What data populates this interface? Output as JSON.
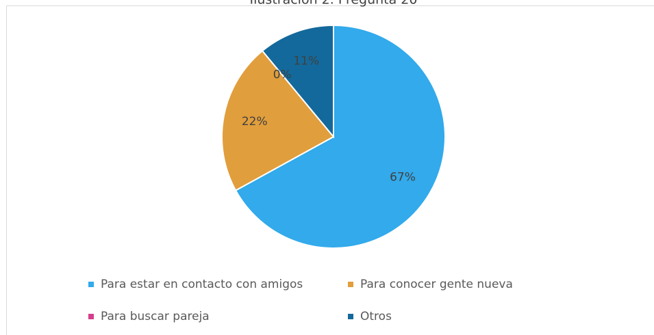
{
  "chart_data": {
    "type": "pie",
    "title": "Ilustración 2. Pregunta 20",
    "categories": [
      "Para estar en contacto con amigos",
      "Para conocer gente nueva",
      "Para buscar pareja",
      "Otros"
    ],
    "values": [
      67,
      22,
      0,
      11
    ],
    "value_labels": [
      "67%",
      "22%",
      "0%",
      "11%"
    ],
    "colors": [
      "#32aaeb",
      "#e19e3c",
      "#d63e8c",
      "#13699b"
    ]
  }
}
